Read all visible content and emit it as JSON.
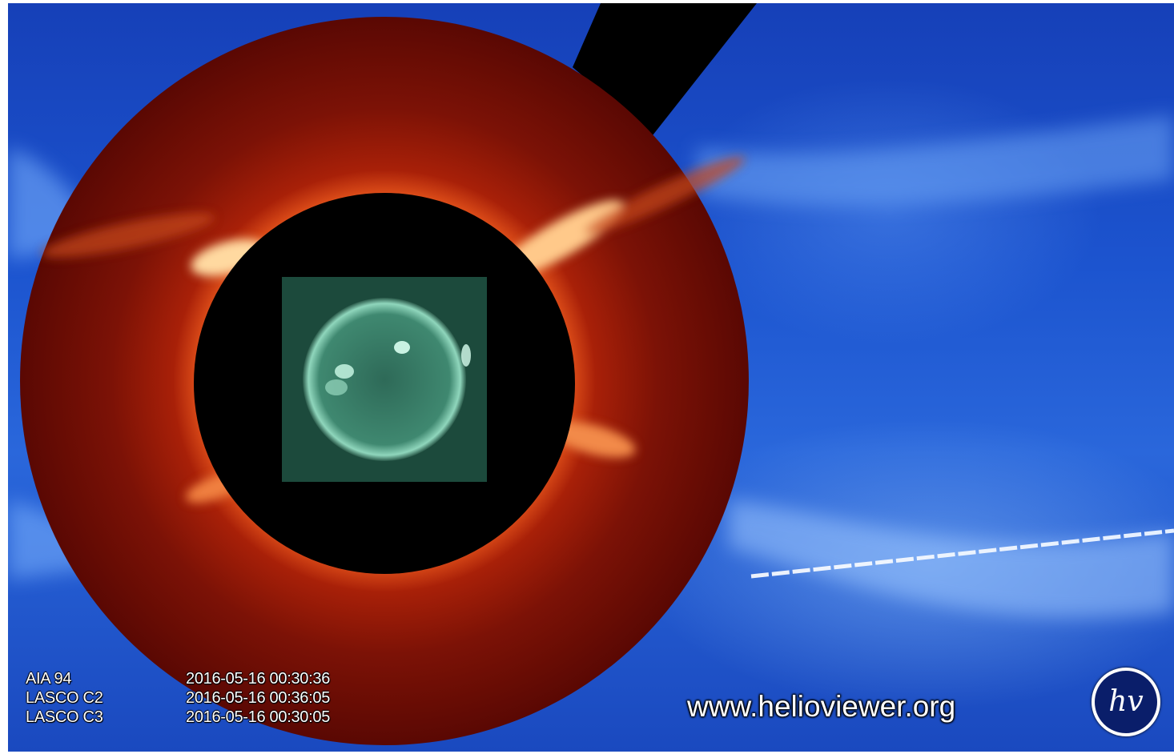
{
  "layers": [
    {
      "name": "AIA 94",
      "timestamp": "2016-05-16 00:30:36"
    },
    {
      "name": "LASCO C2",
      "timestamp": "2016-05-16 00:36:05"
    },
    {
      "name": "LASCO C3",
      "timestamp": "2016-05-16 00:30:05"
    }
  ],
  "watermark": "www.helioviewer.org",
  "logo": {
    "text": "hv",
    "icon": "helioviewer-logo-icon"
  },
  "colors": {
    "c3_blue": "#1c54cf",
    "c2_red": "#7a0f05",
    "occulter": "#000000",
    "aia_green": "#2f6b55"
  }
}
